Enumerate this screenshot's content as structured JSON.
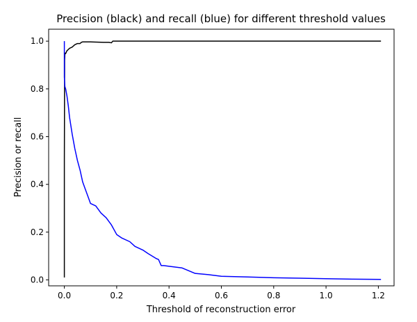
{
  "chart_data": {
    "type": "line",
    "title": "Precision (black) and recall (blue) for different threshold values",
    "xlabel": "Threshold of reconstruction error",
    "ylabel": "Precision or recall",
    "xlim": [
      -0.06,
      1.26
    ],
    "ylim": [
      -0.025,
      1.05
    ],
    "xticks": [
      0.0,
      0.2,
      0.4,
      0.6,
      0.8,
      1.0,
      1.2
    ],
    "xtick_labels": [
      "0.0",
      "0.2",
      "0.4",
      "0.6",
      "0.8",
      "1.0",
      "1.2"
    ],
    "yticks": [
      0.0,
      0.2,
      0.4,
      0.6,
      0.8,
      1.0
    ],
    "ytick_labels": [
      "0.0",
      "0.2",
      "0.4",
      "0.6",
      "0.8",
      "1.0"
    ],
    "grid": false,
    "legend": null,
    "series": [
      {
        "color": "#000000",
        "x": [
          0.0,
          0.0,
          0.001,
          0.001,
          0.002,
          0.003,
          0.005,
          0.008,
          0.01,
          0.015,
          0.02,
          0.03,
          0.04,
          0.05,
          0.06,
          0.065,
          0.07,
          0.1,
          0.15,
          0.17,
          0.18,
          0.185,
          0.2,
          0.4,
          0.6,
          0.8,
          1.0,
          1.21
        ],
        "y": [
          0.01,
          0.5,
          0.88,
          0.92,
          0.945,
          0.95,
          0.948,
          0.955,
          0.96,
          0.965,
          0.97,
          0.975,
          0.985,
          0.99,
          0.99,
          0.995,
          0.997,
          0.997,
          0.995,
          0.995,
          0.993,
          1.0,
          1.0,
          1.0,
          1.0,
          1.0,
          1.0,
          1.0
        ]
      },
      {
        "color": "#0000ff",
        "x": [
          0.0,
          0.0,
          0.002,
          0.005,
          0.01,
          0.015,
          0.02,
          0.03,
          0.04,
          0.05,
          0.06,
          0.07,
          0.08,
          0.09,
          0.1,
          0.12,
          0.14,
          0.16,
          0.18,
          0.2,
          0.22,
          0.25,
          0.27,
          0.3,
          0.32,
          0.35,
          0.36,
          0.37,
          0.38,
          0.4,
          0.45,
          0.5,
          0.55,
          0.6,
          0.7,
          0.8,
          0.9,
          1.0,
          1.1,
          1.21
        ],
        "y": [
          1.0,
          0.85,
          0.81,
          0.8,
          0.77,
          0.73,
          0.68,
          0.61,
          0.55,
          0.5,
          0.46,
          0.41,
          0.38,
          0.35,
          0.32,
          0.31,
          0.28,
          0.26,
          0.23,
          0.19,
          0.175,
          0.16,
          0.14,
          0.125,
          0.11,
          0.09,
          0.085,
          0.06,
          0.06,
          0.057,
          0.05,
          0.027,
          0.022,
          0.015,
          0.012,
          0.009,
          0.007,
          0.005,
          0.003,
          0.002
        ]
      }
    ]
  }
}
